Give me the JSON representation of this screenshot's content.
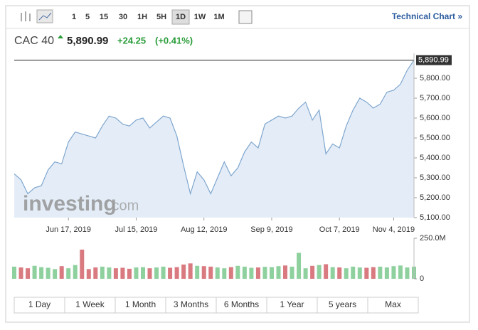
{
  "toolbar": {
    "intervals": [
      "1",
      "5",
      "15",
      "30",
      "1H",
      "5H",
      "1D",
      "1W",
      "1M"
    ],
    "active": "1D",
    "link": "Technical Chart »"
  },
  "header": {
    "symbol": "CAC 40",
    "price": "5,890.99",
    "change": "+24.25",
    "change_pct": "(+0.41%)"
  },
  "watermark": {
    "brand": "investing",
    "suffix": ".com"
  },
  "chart_data": [
    {
      "type": "line",
      "color": "#7fa6cf",
      "area_color": "#e4edf7",
      "categories": [
        null,
        null,
        null,
        null,
        null,
        null,
        null,
        null,
        "Jun 17, 2019",
        null,
        null,
        null,
        null,
        null,
        null,
        null,
        null,
        null,
        "Jul 15, 2019",
        null,
        null,
        null,
        null,
        null,
        null,
        null,
        null,
        null,
        "Aug 12, 2019",
        null,
        null,
        null,
        null,
        null,
        null,
        null,
        null,
        null,
        "Sep 9, 2019",
        null,
        null,
        null,
        null,
        null,
        null,
        null,
        null,
        null,
        "Oct 7, 2019",
        null,
        null,
        null,
        null,
        null,
        null,
        null,
        "Nov 4, 2019",
        null,
        null,
        null
      ],
      "values": [
        5320,
        5290,
        5220,
        5250,
        5260,
        5340,
        5380,
        5370,
        5480,
        5530,
        5520,
        5510,
        5500,
        5560,
        5610,
        5600,
        5570,
        5560,
        5590,
        5600,
        5550,
        5580,
        5610,
        5600,
        5510,
        5360,
        5220,
        5330,
        5290,
        5220,
        5300,
        5380,
        5310,
        5350,
        5430,
        5480,
        5450,
        5570,
        5590,
        5610,
        5600,
        5610,
        5650,
        5680,
        5590,
        5640,
        5420,
        5470,
        5450,
        5560,
        5640,
        5700,
        5680,
        5650,
        5670,
        5730,
        5740,
        5770,
        5840,
        5890.99
      ],
      "ylim": [
        5100,
        5925
      ],
      "yticks": [
        {
          "value": 5100,
          "label": "5,100.00"
        },
        {
          "value": 5200,
          "label": "5,200.00"
        },
        {
          "value": 5300,
          "label": "5,300.00"
        },
        {
          "value": 5400,
          "label": "5,400.00"
        },
        {
          "value": 5500,
          "label": "5,500.00"
        },
        {
          "value": 5600,
          "label": "5,600.00"
        },
        {
          "value": 5700,
          "label": "5,700.00"
        },
        {
          "value": 5800,
          "label": "5,800.00"
        }
      ]
    },
    {
      "type": "bar",
      "up_color": "#8fd19e",
      "down_color": "#d97a80",
      "values": [
        75000000,
        70000000,
        65000000,
        80000000,
        72000000,
        68000000,
        60000000,
        78000000,
        65000000,
        85000000,
        180000000,
        60000000,
        70000000,
        75000000,
        70000000,
        65000000,
        68000000,
        62000000,
        70000000,
        72000000,
        65000000,
        70000000,
        75000000,
        68000000,
        72000000,
        88000000,
        95000000,
        80000000,
        78000000,
        75000000,
        70000000,
        65000000,
        72000000,
        80000000,
        75000000,
        68000000,
        70000000,
        74000000,
        72000000,
        78000000,
        82000000,
        75000000,
        160000000,
        65000000,
        80000000,
        85000000,
        90000000,
        72000000,
        70000000,
        65000000,
        75000000,
        70000000,
        68000000,
        72000000,
        75000000,
        70000000,
        78000000,
        82000000,
        70000000,
        75000000
      ],
      "ylim": [
        0,
        250000000
      ],
      "yticks": [
        0,
        {
          "value": 250000000,
          "label": "250.0M"
        }
      ]
    }
  ],
  "ranges": [
    "1 Day",
    "1 Week",
    "1 Month",
    "3 Months",
    "6 Months",
    "1 Year",
    "5 years",
    "Max"
  ]
}
